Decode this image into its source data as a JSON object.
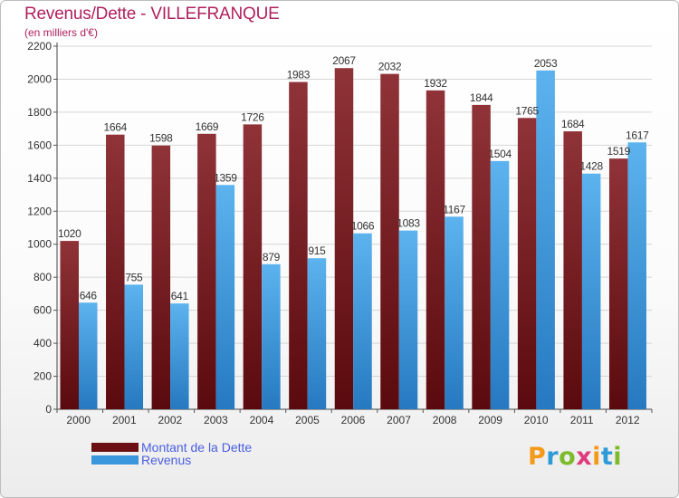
{
  "header": {
    "title": "Revenus/Dette - VILLEFRANQUE",
    "subtitle": "(en milliers d'€)"
  },
  "chart_data": {
    "type": "bar",
    "title": "Revenus/Dette - VILLEFRANQUE",
    "ylabel": "(en milliers d'€)",
    "xlabel": "",
    "categories": [
      "2000",
      "2001",
      "2002",
      "2003",
      "2004",
      "2005",
      "2006",
      "2007",
      "2008",
      "2009",
      "2010",
      "2011",
      "2012"
    ],
    "series": [
      {
        "name": "Montant de la Dette",
        "color": "#7b1a20",
        "values": [
          1020,
          1664,
          1598,
          1669,
          1726,
          1983,
          2067,
          2032,
          1932,
          1844,
          1765,
          1684,
          1519
        ]
      },
      {
        "name": "Revenus",
        "color": "#3a96dd",
        "values": [
          646,
          755,
          641,
          1359,
          879,
          915,
          1066,
          1083,
          1167,
          1504,
          2053,
          1428,
          1617
        ]
      }
    ],
    "ylim": [
      0,
      2200
    ],
    "yticks": [
      0,
      200,
      400,
      600,
      800,
      1000,
      1200,
      1400,
      1600,
      1800,
      2000,
      2200
    ],
    "grid": true,
    "legend": "bottom-left"
  },
  "legend": {
    "items": [
      {
        "label": "Montant de la Dette",
        "color": "#6b0f12"
      },
      {
        "label": "Revenus",
        "color": "#3a96dd"
      }
    ]
  },
  "logo": {
    "text": "Proxiti",
    "letters": [
      "P",
      "r",
      "o",
      "x",
      "i",
      "t",
      "i"
    ]
  }
}
